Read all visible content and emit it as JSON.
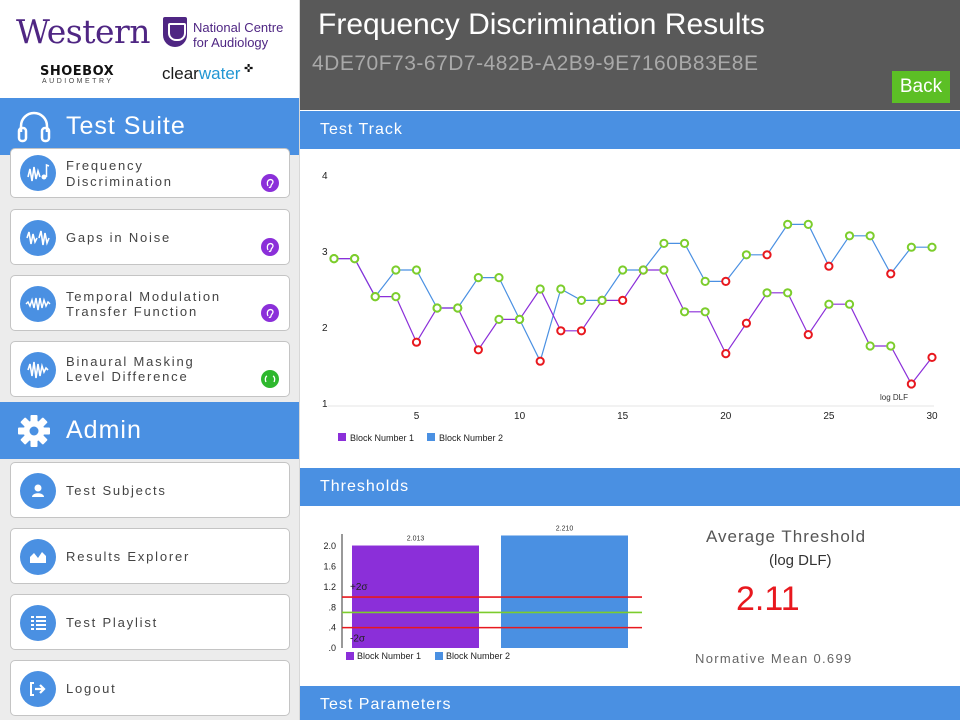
{
  "logos": {
    "western": "Western",
    "ncfa_line1": "National Centre",
    "ncfa_line2": "for Audiology",
    "shoebox": "SHOEBOX",
    "shoebox_sub": "AUDIOMETRY",
    "clearwater_a": "clear",
    "clearwater_b": "water"
  },
  "sidebar": {
    "test_suite_label": "Test Suite",
    "admin_label": "Admin",
    "tests": [
      {
        "line1": "Frequency",
        "line2": "Discrimination",
        "ear_color": "#8b2fd9"
      },
      {
        "line1": "Gaps in Noise",
        "line2": "",
        "ear_color": "#8b2fd9"
      },
      {
        "line1": "Temporal Modulation",
        "line2": "Transfer Function",
        "ear_color": "#8b2fd9"
      },
      {
        "line1": "Binaural Masking",
        "line2": "Level Difference",
        "ear_color": "#2eb82e"
      }
    ],
    "admin_items": [
      {
        "label": "Test Subjects",
        "icon": "person-icon"
      },
      {
        "label": "Results Explorer",
        "icon": "area-chart-icon"
      },
      {
        "label": "Test Playlist",
        "icon": "list-icon"
      },
      {
        "label": "Logout",
        "icon": "logout-icon"
      }
    ]
  },
  "header": {
    "title": "Frequency Discrimination Results",
    "session_id": "4DE70F73-67D7-482B-A2B9-9E7160B83E8E",
    "back_label": "Back"
  },
  "sections": {
    "track": "Test Track",
    "thresholds": "Thresholds",
    "parameters": "Test Parameters"
  },
  "threshold_summary": {
    "title": "Average Threshold",
    "unit": "(log DLF)",
    "value": "2.11",
    "normative": "Normative Mean 0.699"
  },
  "colors": {
    "accent_blue": "#4a90e2",
    "block1": "#8b2fd9",
    "block2": "#4a90e2",
    "correct": "#7ccd2c",
    "incorrect": "#e8181e",
    "back_button": "#5cbf25"
  },
  "chart_data": [
    {
      "type": "line",
      "title": "",
      "xlabel": "",
      "ylabel": "",
      "y_unit_label": "log DLF",
      "xlim": [
        1,
        30
      ],
      "ylim": [
        1,
        4
      ],
      "xticks": [
        5,
        10,
        15,
        20,
        25,
        30
      ],
      "yticks": [
        1,
        2,
        3,
        4
      ],
      "legend": "bottom-left",
      "series": [
        {
          "name": "Block Number 1",
          "color": "#8b2fd9",
          "x": [
            1,
            2,
            3,
            4,
            5,
            6,
            7,
            8,
            9,
            10,
            11,
            12,
            13,
            14,
            15,
            16,
            17,
            18,
            19,
            20,
            21,
            22,
            23,
            24,
            25,
            26,
            27,
            28,
            29,
            30
          ],
          "y": [
            2.9,
            2.9,
            2.4,
            2.4,
            1.8,
            2.25,
            2.25,
            1.7,
            2.1,
            2.1,
            2.5,
            1.95,
            1.95,
            2.35,
            2.35,
            2.75,
            2.75,
            2.2,
            2.2,
            1.65,
            2.05,
            2.45,
            2.45,
            1.9,
            2.3,
            2.3,
            1.75,
            1.75,
            1.25,
            1.6
          ],
          "correct": [
            true,
            true,
            true,
            true,
            false,
            true,
            true,
            false,
            true,
            true,
            true,
            false,
            false,
            true,
            false,
            true,
            true,
            true,
            true,
            false,
            false,
            true,
            true,
            false,
            true,
            true,
            true,
            true,
            false,
            false
          ]
        },
        {
          "name": "Block Number 2",
          "color": "#4a90e2",
          "x": [
            1,
            2,
            3,
            4,
            5,
            6,
            7,
            8,
            9,
            10,
            11,
            12,
            13,
            14,
            15,
            16,
            17,
            18,
            19,
            20,
            21,
            22,
            23,
            24,
            25,
            26,
            27,
            28,
            29,
            30
          ],
          "y": [
            2.9,
            2.9,
            2.4,
            2.75,
            2.75,
            2.25,
            2.25,
            2.65,
            2.65,
            2.1,
            1.55,
            2.5,
            2.35,
            2.35,
            2.75,
            2.75,
            3.1,
            3.1,
            2.6,
            2.6,
            2.95,
            2.95,
            3.35,
            3.35,
            2.8,
            3.2,
            3.2,
            2.7,
            3.05,
            3.05
          ],
          "correct": [
            true,
            true,
            true,
            true,
            true,
            true,
            true,
            true,
            true,
            true,
            false,
            true,
            true,
            false,
            true,
            false,
            true,
            true,
            true,
            false,
            true,
            false,
            true,
            true,
            false,
            true,
            true,
            false,
            true,
            true
          ]
        }
      ]
    },
    {
      "type": "bar",
      "title": "",
      "categories": [
        "Block Number 1",
        "Block Number 2"
      ],
      "values": [
        2.013,
        2.21
      ],
      "value_labels": [
        "2.013",
        "2.210"
      ],
      "colors": [
        "#8b2fd9",
        "#4a90e2"
      ],
      "ylim": [
        0,
        2.2
      ],
      "yticks": [
        ".0",
        ".4",
        ".8",
        "1.2",
        "1.6",
        "2.0"
      ],
      "reference_lines": [
        {
          "label": "+2σ",
          "value": 1.0,
          "color": "#e8181e"
        },
        {
          "label": "",
          "value": 0.699,
          "color": "#7ccd2c"
        },
        {
          "label": "-2σ",
          "value": 0.4,
          "color": "#e8181e"
        }
      ],
      "legend": "bottom-left"
    }
  ]
}
